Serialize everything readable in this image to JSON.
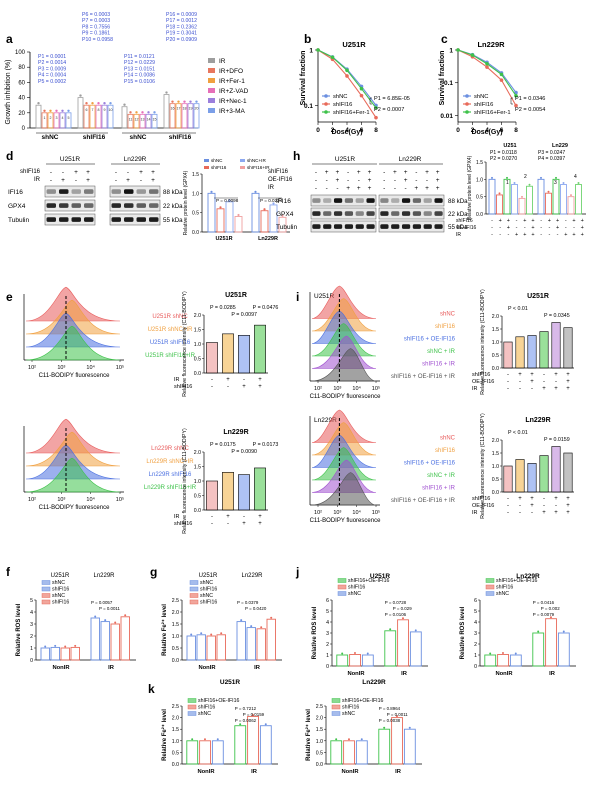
{
  "panels": {
    "a": {
      "letter": "a",
      "ylabel": "Growth inhibition (%)",
      "yticks": [
        "0",
        "20",
        "40",
        "60",
        "80",
        "100"
      ],
      "groups": [
        "shNC",
        "shIFI16",
        "shNC",
        "shIFI16"
      ],
      "conditions": [
        "IR",
        "IR+DFO",
        "IR+Fer-1",
        "IR+Z-VAD",
        "IR+Nec-1",
        "IR+3-MA"
      ],
      "colors": [
        "#9e9e9e",
        "#e8775e",
        "#f0a040",
        "#e66fb8",
        "#9b7fdc",
        "#7b9fe8"
      ],
      "pvals_1": [
        "P1 = 0.0001",
        "P2 = 0.0014",
        "P3 = 0.0009",
        "P4 = 0.0004",
        "P5 = 0.0002"
      ],
      "pvals_2": [
        "P6 = 0.0003",
        "P7 = 0.0003",
        "P8 = 0.7556",
        "P9 = 0.1861",
        "P10 = 0.0958"
      ],
      "pvals_3": [
        "P11 = 0.0121",
        "P12 = 0.0229",
        "P13 = 0.0151",
        "P14 = 0.0086",
        "P15 = 0.0106"
      ],
      "pvals_4": [
        "P16 = 0.0009",
        "P17 = 0.0012",
        "P18 = 0.2362",
        "P19 = 0.3041",
        "P20 = 0.0909"
      ],
      "bar_labels_1": [
        "1",
        "2",
        "3",
        "4",
        "5"
      ],
      "bar_labels_2": [
        "6",
        "7",
        "8",
        "9",
        "10"
      ],
      "bar_labels_3": [
        "11",
        "12",
        "13",
        "14",
        "15"
      ],
      "bar_labels_4": [
        "16",
        "17",
        "18",
        "19",
        "20"
      ],
      "chart_data": {
        "type": "bar",
        "categories": [
          "shNC",
          "shIFI16",
          "shNC",
          "shIFI16"
        ],
        "series": [
          {
            "name": "IR",
            "values": [
              30,
              40,
              28,
              44
            ]
          },
          {
            "name": "IR+DFO",
            "values": [
              20,
              30,
              18,
              32
            ]
          },
          {
            "name": "IR+Fer-1",
            "values": [
              20,
              30,
              18,
              32
            ]
          },
          {
            "name": "IR+Z-VAD",
            "values": [
              20,
              30,
              18,
              32
            ]
          },
          {
            "name": "IR+Nec-1",
            "values": [
              20,
              30,
              18,
              32
            ]
          },
          {
            "name": "IR+3-MA",
            "values": [
              20,
              30,
              18,
              32
            ]
          }
        ]
      }
    },
    "b": {
      "letter": "b",
      "title": "U251R",
      "ylabel": "Survival fraction",
      "xlabel": "Dose(Gy)",
      "xticks": [
        "0",
        "2",
        "4",
        "6",
        "8"
      ],
      "yticks": [
        "1",
        "0.1"
      ],
      "legend": [
        "shNC",
        "shIFI16",
        "shIFI16+Fer-1"
      ],
      "colors": [
        "#6b8fe0",
        "#e86a5a",
        "#3ec24a"
      ],
      "p1": "P1 = 6.85E-05",
      "p2": "P2 = 0.0007",
      "chart_data": {
        "type": "line",
        "x": [
          0,
          2,
          4,
          6,
          8
        ],
        "series": [
          {
            "name": "shNC",
            "values": [
              1,
              0.75,
              0.45,
              0.22,
              0.1
            ]
          },
          {
            "name": "shIFI16",
            "values": [
              1,
              0.68,
              0.34,
              0.15,
              0.06
            ]
          },
          {
            "name": "shIFI16+Fer-1",
            "values": [
              1,
              0.74,
              0.43,
              0.2,
              0.09
            ]
          }
        ]
      }
    },
    "c": {
      "letter": "c",
      "title": "Ln229R",
      "ylabel": "Survival fraction",
      "xlabel": "Dose(Gy)",
      "xticks": [
        "0",
        "2",
        "4",
        "6",
        "8"
      ],
      "yticks": [
        "1",
        "0.1",
        "0.01"
      ],
      "legend": [
        "shNC",
        "shIFI16",
        "shIFI16+Fer-1"
      ],
      "p1": "P1 = 0.0346",
      "p2": "P2 = 0.0054",
      "chart_data": {
        "type": "line",
        "x": [
          0,
          2,
          4,
          6,
          8
        ],
        "series": [
          {
            "name": "shNC",
            "values": [
              1,
              0.72,
              0.42,
              0.2,
              0.05
            ]
          },
          {
            "name": "shIFI16",
            "values": [
              1,
              0.62,
              0.3,
              0.12,
              0.02
            ]
          },
          {
            "name": "shIFI16+Fer-1",
            "values": [
              1,
              0.7,
              0.38,
              0.18,
              0.04
            ]
          }
        ]
      }
    },
    "d": {
      "letter": "d",
      "cell1": "U251R",
      "cell2": "Ln229R",
      "row_shIFI16": "shIFI16",
      "row_IR": "IR",
      "signs_shIFI16": [
        "-",
        "-",
        "+",
        "+",
        "-",
        "-",
        "+",
        "+"
      ],
      "signs_IR": [
        "-",
        "+",
        "-",
        "+",
        "-",
        "+",
        "-",
        "+"
      ],
      "proteins": [
        "IFI16",
        "GPX4",
        "Tubulin"
      ],
      "kda": [
        "88 kDa",
        "22 kDa",
        "55 kDa"
      ],
      "legend": [
        "shNC",
        "shIFI16",
        "shNC+IR",
        "shIFI16+IR"
      ],
      "ylabel": "Relative protein level (GPX4)",
      "yticks": [
        "0.0",
        "0.5",
        "1.0",
        "1.5"
      ],
      "xcats": [
        "U251R",
        "Ln229R"
      ],
      "p1": "P = 0.0098",
      "p2": "P = 0.0224"
    },
    "h": {
      "letter": "h",
      "cell1": "U251R",
      "cell2": "Ln229R",
      "rows": [
        "shIFI16",
        "OE-IFI16",
        "IR"
      ],
      "signs_row1": [
        "-",
        "+",
        "+",
        "-",
        "+",
        "+",
        "-",
        "+",
        "+",
        "-",
        "+",
        "+"
      ],
      "signs_row2": [
        "-",
        "-",
        "+",
        "-",
        "-",
        "+",
        "-",
        "-",
        "+",
        "-",
        "-",
        "+"
      ],
      "signs_row3": [
        "-",
        "-",
        "-",
        "+",
        "+",
        "+",
        "-",
        "-",
        "-",
        "+",
        "+",
        "+"
      ],
      "proteins": [
        "IFI16",
        "GPX4",
        "Tubulin"
      ],
      "kda": [
        "88 kDa",
        "22 kDa",
        "55 kDa"
      ],
      "ylabel": "Relative protein level (GPX4)",
      "yticks": [
        "0.0",
        "0.5",
        "1.0",
        "1.5"
      ],
      "chart_cells": [
        "U251",
        "Ln229"
      ],
      "pvals_u": [
        "P1 = 0.0118",
        "P2 = 0.0270"
      ],
      "pvals_l": [
        "P3 = 0.0247",
        "P4 = 0.0397"
      ],
      "nums": [
        "1",
        "2",
        "3",
        "4"
      ],
      "rowlabels": [
        "shIFI16",
        "OE-IFI16",
        "IR"
      ],
      "signs_chart1": [
        "-",
        "+",
        "+",
        "-",
        "+",
        "+",
        "-",
        "+",
        "+",
        "-",
        "+",
        "+"
      ],
      "signs_chart2": [
        "-",
        "-",
        "+",
        "-",
        "-",
        "+",
        "-",
        "-",
        "+",
        "-",
        "-",
        "+"
      ],
      "signs_chart3": [
        "-",
        "-",
        "-",
        "+",
        "+",
        "+",
        "-",
        "-",
        "-",
        "+",
        "+",
        "+"
      ]
    },
    "e": {
      "letter": "e",
      "flow_top_labels": [
        "U251R shNC",
        "U251R shNC+IR",
        "U251R shIFI16",
        "U251R shIFI16+IR"
      ],
      "flow_bot_labels": [
        "Ln229R shNC",
        "Ln229R shNC+IR",
        "Ln229R shIFI16",
        "Ln229R shIFI16+IR"
      ],
      "flow_xlabel": "C11-BODIPY fluorescence",
      "flow_ticks": [
        "10²",
        "10³",
        "10⁴",
        "10⁵"
      ],
      "bar_top_title": "U251R",
      "bar_bot_title": "Ln229R",
      "bar_ylabel": "Relative fluorescence intensity (C11-BODIPY)",
      "bar_yticks": [
        "0.0",
        "0.5",
        "1.0",
        "1.5",
        "2.0"
      ],
      "rowlabels": [
        "IR",
        "shIFI16"
      ],
      "signs_IR": [
        "-",
        "+",
        "-",
        "+"
      ],
      "signs_sh": [
        "-",
        "-",
        "+",
        "+"
      ],
      "top_p": [
        "P = 0.0285",
        "P = 0.0097",
        "P = 0.0476"
      ],
      "bot_p": [
        "P = 0.0175",
        "P = 0.0090",
        "P = 0.0173"
      ],
      "colors": [
        "#f0a8a8",
        "#f5c26a",
        "#8ca8f0",
        "#6fd36f"
      ]
    },
    "i": {
      "letter": "i",
      "flow_top_cell": "U251R",
      "flow_bot_cell": "Ln229R",
      "flow_labels": [
        "shNC",
        "shIFI16",
        "shIFI16 + OE-IFI16",
        "shNC + IR",
        "shIFI16 + IR",
        "shIFI16 + OE-IFI16 + IR"
      ],
      "flow_xlabel": "C11-BODIPY fluorescence",
      "flow_ticks": [
        "10²",
        "10³",
        "10⁴",
        "10⁵"
      ],
      "bar_top_title": "U251R",
      "bar_bot_title": "Ln229R",
      "bar_ylabel": "Relative fluorescence intensity (C11-BODIPY)",
      "bar_yticks": [
        "0.0",
        "0.5",
        "1.0",
        "1.5",
        "2.0"
      ],
      "rowlabels": [
        "shIFI16",
        "OE-IFI16",
        "IR"
      ],
      "signs_r1": [
        "-",
        "+",
        "+",
        "-",
        "+",
        "+"
      ],
      "signs_r2": [
        "-",
        "-",
        "+",
        "-",
        "-",
        "+"
      ],
      "signs_r3": [
        "-",
        "-",
        "-",
        "+",
        "+",
        "+"
      ],
      "top_p": [
        "P < 0.01",
        "P = 0.0345"
      ],
      "bot_p": [
        "P < 0.01",
        "P = 0.0159"
      ],
      "colors": [
        "#f0a8a8",
        "#f5c26a",
        "#8ca8f0",
        "#6fd36f",
        "#c89be0",
        "#a8a8a8"
      ]
    },
    "f": {
      "letter": "f",
      "ylabel": "Relative ROS level",
      "yticks": [
        "0",
        "1",
        "2",
        "3",
        "4",
        "5"
      ],
      "cells": [
        "U251R",
        "Ln229R"
      ],
      "legend1": [
        "shNC",
        "shIFI16"
      ],
      "legend2": [
        "shNC",
        "shIFI16"
      ],
      "xcats": [
        "NonIR",
        "IR"
      ],
      "p": [
        "P = 0.0057",
        "P = 0.0011"
      ]
    },
    "g": {
      "letter": "g",
      "ylabel": "Relative Fe²⁺ level",
      "yticks": [
        "0.0",
        "0.5",
        "1.0",
        "1.5",
        "2.0",
        "2.5"
      ],
      "cells": [
        "U251R",
        "Ln229R"
      ],
      "legend1": [
        "shNC",
        "shIFI16"
      ],
      "legend2": [
        "shNC",
        "shIFI16"
      ],
      "xcats": [
        "NonIR",
        "IR"
      ],
      "p": [
        "P = 0.0379",
        "P = 0.0420"
      ]
    },
    "j": {
      "letter": "j",
      "title1": "U251R",
      "title2": "Ln229R",
      "ylabel": "Relative ROS level",
      "yticks": [
        "0",
        "1",
        "2",
        "3",
        "4",
        "5",
        "6"
      ],
      "legend": [
        "shIFI16+OE-IFI16",
        "shIFI16",
        "shNC"
      ],
      "xcats": [
        "NonIR",
        "IR"
      ],
      "p1": [
        "P = 0.0728",
        "P = 0.029",
        "P = 0.0106"
      ],
      "p2": [
        "P = 0.0416",
        "P = 0.002",
        "P = 0.0079"
      ]
    },
    "k": {
      "letter": "k",
      "title1": "U251R",
      "title2": "Ln229R",
      "ylabel": "Relative Fe²⁺ level",
      "yticks": [
        "0.0",
        "0.5",
        "1.0",
        "1.5",
        "2.0",
        "2.5"
      ],
      "legend": [
        "shIFI16+OE-IFI16",
        "shIFI16",
        "shNC"
      ],
      "xcats": [
        "NonIR",
        "IR"
      ],
      "p1": [
        "P = 0.7212",
        "P = 0.0159",
        "P = 0.0062"
      ],
      "p2": [
        "P = 0.8964",
        "P = 0.0011",
        "P = 0.0038"
      ]
    }
  }
}
